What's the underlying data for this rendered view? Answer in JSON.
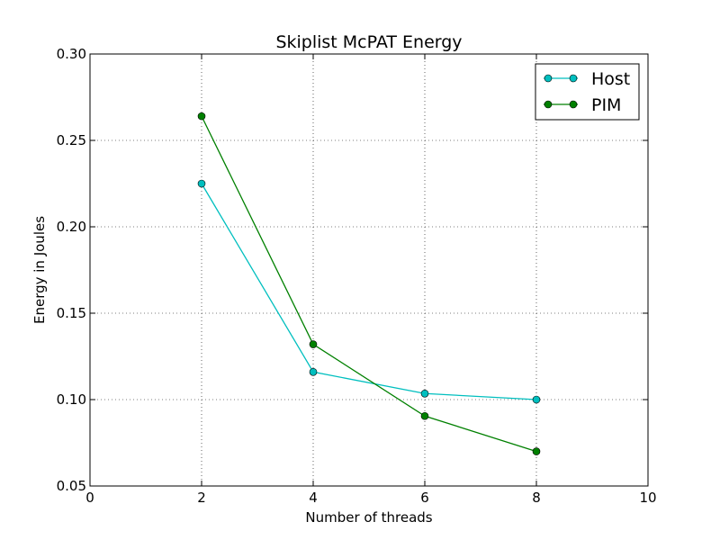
{
  "chart_data": {
    "type": "line",
    "title": "Skiplist McPAT Energy",
    "xlabel": "Number of threads",
    "ylabel": "Energy in Joules",
    "xlim": [
      0,
      10
    ],
    "ylim": [
      0.05,
      0.3
    ],
    "xticks": [
      0,
      2,
      4,
      6,
      8,
      10
    ],
    "yticks": [
      0.05,
      0.1,
      0.15,
      0.2,
      0.25,
      0.3
    ],
    "xtick_labels": [
      "0",
      "2",
      "4",
      "6",
      "8",
      "10"
    ],
    "ytick_labels": [
      "0.05",
      "0.10",
      "0.15",
      "0.20",
      "0.25",
      "0.30"
    ],
    "grid": true,
    "legend_position": "top-right",
    "x": [
      2,
      4,
      6,
      8
    ],
    "series": [
      {
        "name": "Host",
        "color": "#00bfbf",
        "marker": "circle",
        "values": [
          0.225,
          0.116,
          0.1035,
          0.1
        ]
      },
      {
        "name": "PIM",
        "color": "#008000",
        "marker": "circle",
        "values": [
          0.264,
          0.132,
          0.0905,
          0.07
        ]
      }
    ]
  }
}
